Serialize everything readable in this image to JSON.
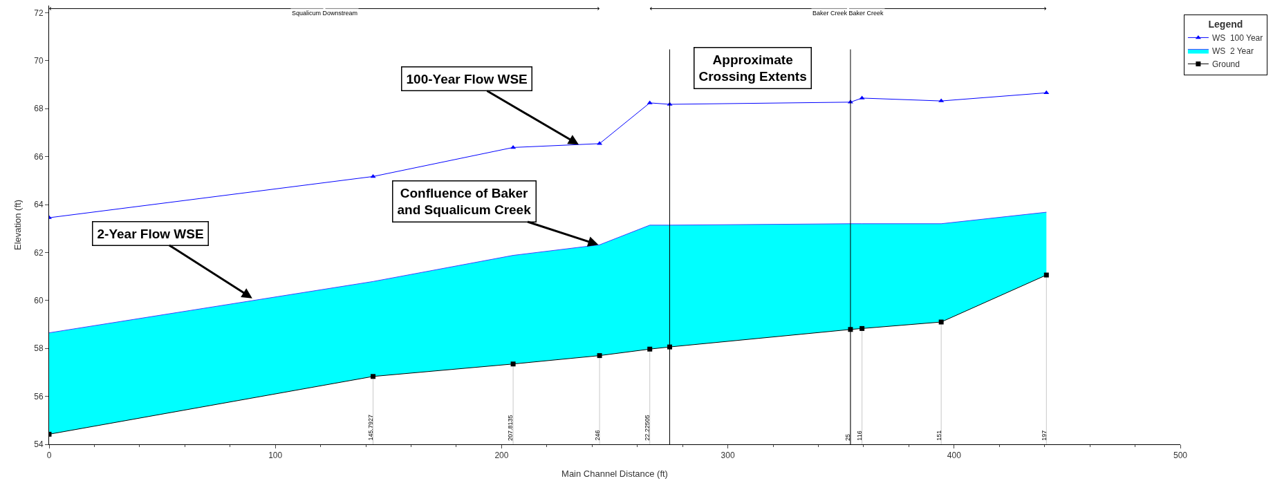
{
  "chart_data": {
    "type": "line",
    "xlabel": "Main Channel Distance (ft)",
    "ylabel": "Elevation (ft)",
    "x": [
      0,
      143.2,
      205.1,
      243.3,
      265.5,
      274.3,
      354.2,
      359.3,
      394.3,
      440.8
    ],
    "series": [
      {
        "name": "WS  100 Year",
        "color": "#0000ff",
        "marker": "triangle",
        "values": [
          63.45,
          65.17,
          66.38,
          66.54,
          68.24,
          68.18,
          68.27,
          68.44,
          68.32,
          68.66
        ]
      },
      {
        "name": "WS  2 Year",
        "color": "#00ffff",
        "type": "area",
        "values": [
          58.65,
          60.79,
          61.88,
          62.32,
          63.14,
          63.14,
          63.2,
          63.2,
          63.2,
          63.68
        ]
      },
      {
        "name": "Ground",
        "color": "#000000",
        "marker": "square",
        "values": [
          54.42,
          56.83,
          57.35,
          57.7,
          57.97,
          58.06,
          58.79,
          58.83,
          59.1,
          61.06
        ]
      }
    ],
    "xlim": [
      0,
      500
    ],
    "xticks": [
      0,
      100,
      200,
      300,
      400,
      500
    ],
    "ylim": [
      54,
      72.3
    ],
    "yticks": [
      54,
      56,
      58,
      60,
      62,
      64,
      66,
      68,
      70,
      72
    ],
    "legend": "top right",
    "legend_title": "Legend",
    "ref_lines": [
      {
        "axis": "x",
        "value": 274.3,
        "color": "#000000"
      },
      {
        "axis": "x",
        "value": 354.2,
        "color": "#000000"
      }
    ],
    "annotations": [
      {
        "text": "100-Year Flow WSE",
        "x": 234.1,
        "y": 66.5
      },
      {
        "text": "Confluence of Baker\nand Squalicum Creek",
        "x": 242.8,
        "y": 62.32
      },
      {
        "text": "2-Year Flow WSE",
        "x": 89.8,
        "y": 60.09
      },
      "Approximate\nCrossing Extents",
      "Squalicum Downstream",
      "Baker Creek Baker Creek",
      {
        "text": "145.7927",
        "x": 143.2,
        "y": 56.83
      },
      {
        "text": "207.8135",
        "x": 205.1,
        "y": 57.35
      },
      {
        "text": "246",
        "x": 243.3,
        "y": 57.7
      },
      {
        "text": "22.22505",
        "x": 265.5,
        "y": 57.97
      },
      {
        "text": "25",
        "x": 354.2,
        "y": 58.79
      },
      {
        "text": "116",
        "x": 359.3,
        "y": 58.83
      },
      {
        "text": "151",
        "x": 394.3,
        "y": 59.1
      },
      {
        "text": "197",
        "x": 440.8,
        "y": 61.06
      }
    ]
  }
}
